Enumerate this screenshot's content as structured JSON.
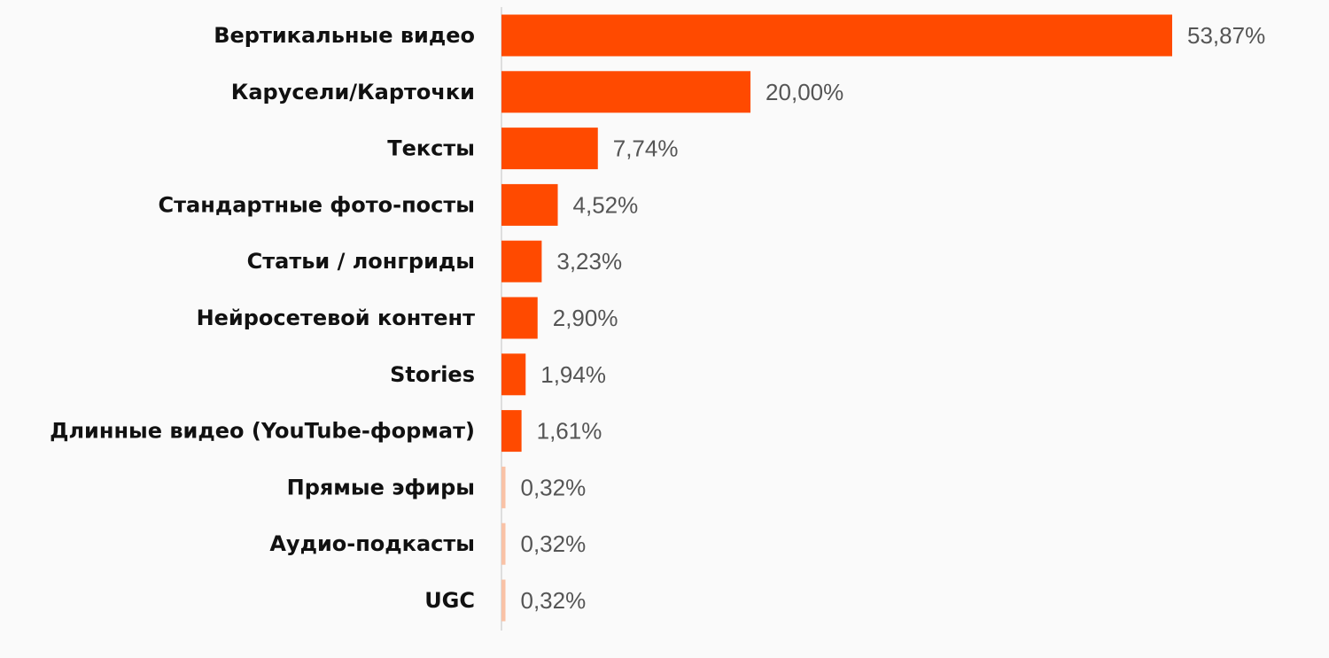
{
  "chart_data": {
    "type": "bar",
    "orientation": "horizontal",
    "title": "",
    "xlabel": "",
    "ylabel": "",
    "categories": [
      "Вертикальные видео",
      "Карусели/Карточки",
      "Тексты",
      "Стандартные фото-посты",
      "Статьи / лонгриды",
      "Нейросетевой контент",
      "Stories",
      "Длинные видео (YouTube-формат)",
      "Прямые эфиры",
      "Аудио-подкасты",
      "UGC"
    ],
    "values": [
      53.87,
      20.0,
      7.74,
      4.52,
      3.23,
      2.9,
      1.94,
      1.61,
      0.32,
      0.32,
      0.32
    ],
    "value_labels": [
      "53,87%",
      "20,00%",
      "7,74%",
      "4,52%",
      "3,23%",
      "2,90%",
      "1,94%",
      "1,61%",
      "0,32%",
      "0,32%",
      "0,32%"
    ],
    "xlim": [
      0,
      100
    ],
    "grid": false,
    "legend": "none",
    "colors": {
      "bar": "#ff4a00",
      "bar_small": "#f9c2a6",
      "axis": "#d4d4d4",
      "category_text": "#111111",
      "value_text": "#555555",
      "background": "#fafafa"
    }
  }
}
